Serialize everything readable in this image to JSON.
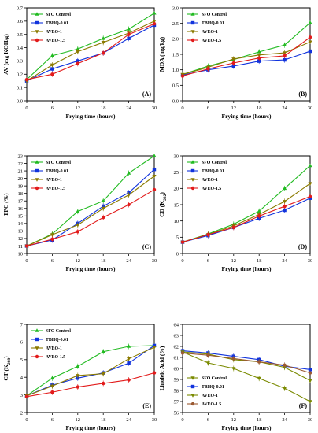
{
  "series_styles": [
    {
      "name": "SFO Control",
      "color": "#22bb22",
      "marker": "triangle-up"
    },
    {
      "name": "TBHQ-0.01",
      "color": "#1133dd",
      "marker": "square"
    },
    {
      "name": "AVEO-1",
      "color": "#8b7a00",
      "marker": "triangle-down"
    },
    {
      "name": "AVEO-1.5",
      "color": "#e21b1b",
      "marker": "circle"
    }
  ],
  "series_styles_f": [
    {
      "name": "SFO Control",
      "color": "#7a8a00",
      "marker": "triangle-down"
    },
    {
      "name": "TBHQ-0.01",
      "color": "#1133dd",
      "marker": "square"
    },
    {
      "name": "AVEO-1",
      "color": "#7a8a00",
      "marker": "triangle-down"
    },
    {
      "name": "AVEO-1.5",
      "color": "#9b5a32",
      "marker": "circle"
    }
  ],
  "chart_data": [
    {
      "type": "line",
      "panel": "(A)",
      "xlabel": "Frying time (hours)",
      "ylabel": "AV (mg KOH/g)",
      "x": [
        0,
        6,
        12,
        18,
        24,
        30
      ],
      "xlim": [
        0,
        30
      ],
      "ylim": [
        0.0,
        0.7
      ],
      "yticks": [
        "0.0",
        "0.1",
        "0.2",
        "0.3",
        "0.4",
        "0.5",
        "0.6",
        "0.7"
      ],
      "legend": "top-left",
      "series": [
        {
          "name": "SFO Control",
          "values": [
            0.16,
            0.34,
            0.39,
            0.47,
            0.54,
            0.66
          ]
        },
        {
          "name": "TBHQ-0.01",
          "values": [
            0.15,
            0.24,
            0.3,
            0.36,
            0.47,
            0.57
          ]
        },
        {
          "name": "AVEO-1",
          "values": [
            0.15,
            0.27,
            0.37,
            0.44,
            0.51,
            0.6
          ]
        },
        {
          "name": "AVEO-1.5",
          "values": [
            0.16,
            0.2,
            0.28,
            0.36,
            0.5,
            0.58
          ]
        }
      ]
    },
    {
      "type": "line",
      "panel": "(B)",
      "xlabel": "Frying time (hours)",
      "ylabel": "MDA (mg/kg)",
      "x": [
        0,
        6,
        12,
        18,
        24,
        30
      ],
      "xlim": [
        0,
        30
      ],
      "ylim": [
        0.0,
        3.0
      ],
      "yticks": [
        "0.0",
        "0.5",
        "1.0",
        "1.5",
        "2.0",
        "2.5",
        "3.0"
      ],
      "legend": "top-left",
      "series": [
        {
          "name": "SFO Control",
          "values": [
            0.85,
            1.12,
            1.33,
            1.58,
            1.8,
            2.52
          ]
        },
        {
          "name": "TBHQ-0.01",
          "values": [
            0.83,
            1.0,
            1.12,
            1.28,
            1.32,
            1.6
          ]
        },
        {
          "name": "AVEO-1",
          "values": [
            0.85,
            1.08,
            1.35,
            1.48,
            1.55,
            1.9
          ]
        },
        {
          "name": "AVEO-1.5",
          "values": [
            0.8,
            1.03,
            1.22,
            1.38,
            1.45,
            2.05
          ]
        }
      ]
    },
    {
      "type": "line",
      "panel": "(C)",
      "xlabel": "Frying time (hours)",
      "ylabel": "TPC (%)",
      "x": [
        0,
        6,
        12,
        18,
        24,
        30
      ],
      "xlim": [
        0,
        30
      ],
      "ylim": [
        10,
        23
      ],
      "yticks": [
        "10",
        "11",
        "12",
        "13",
        "14",
        "15",
        "16",
        "17",
        "18",
        "19",
        "20",
        "21",
        "22",
        "23"
      ],
      "legend": "top-left",
      "series": [
        {
          "name": "SFO Control",
          "values": [
            11.0,
            12.6,
            15.6,
            17.0,
            20.7,
            23.0
          ]
        },
        {
          "name": "TBHQ-0.01",
          "values": [
            11.0,
            11.8,
            14.0,
            16.3,
            18.1,
            21.2
          ]
        },
        {
          "name": "AVEO-1",
          "values": [
            11.0,
            12.5,
            13.8,
            16.0,
            17.8,
            20.3
          ]
        },
        {
          "name": "AVEO-1.5",
          "values": [
            11.0,
            11.9,
            12.9,
            14.8,
            16.5,
            18.5
          ]
        }
      ]
    },
    {
      "type": "line",
      "panel": "(D)",
      "xlabel": "Frying time (hours)",
      "ylabel": "CD (K232)",
      "x": [
        0,
        6,
        12,
        18,
        24,
        30
      ],
      "xlim": [
        0,
        30
      ],
      "ylim": [
        0,
        30
      ],
      "yticks": [
        "0",
        "5",
        "10",
        "15",
        "20",
        "25",
        "30"
      ],
      "legend": "top-left",
      "series": [
        {
          "name": "SFO Control",
          "values": [
            3.5,
            6.0,
            9.0,
            13.0,
            20.0,
            27.0
          ]
        },
        {
          "name": "TBHQ-0.01",
          "values": [
            3.5,
            5.5,
            8.0,
            10.8,
            13.3,
            17.0
          ]
        },
        {
          "name": "AVEO-1",
          "values": [
            3.5,
            5.8,
            8.5,
            12.0,
            16.0,
            21.5
          ]
        },
        {
          "name": "AVEO-1.5",
          "values": [
            3.5,
            5.8,
            8.0,
            11.5,
            14.5,
            17.5
          ]
        }
      ]
    },
    {
      "type": "line",
      "panel": "(E)",
      "xlabel": "Frying time (hours)",
      "ylabel": "CT (K268)",
      "x": [
        0,
        6,
        12,
        18,
        24,
        30
      ],
      "xlim": [
        0,
        30
      ],
      "ylim": [
        2,
        7
      ],
      "yticks": [
        "2",
        "3",
        "4",
        "5",
        "6",
        "7"
      ],
      "legend": "top-left",
      "series": [
        {
          "name": "SFO Control",
          "values": [
            2.95,
            3.95,
            4.62,
            5.45,
            5.75,
            5.8
          ]
        },
        {
          "name": "TBHQ-0.01",
          "values": [
            2.95,
            3.55,
            3.95,
            4.25,
            4.8,
            5.8
          ]
        },
        {
          "name": "AVEO-1",
          "values": [
            2.95,
            3.5,
            4.1,
            4.2,
            5.05,
            5.7
          ]
        },
        {
          "name": "AVEO-1.5",
          "values": [
            2.9,
            3.15,
            3.45,
            3.65,
            3.85,
            4.25
          ]
        }
      ]
    },
    {
      "type": "line",
      "panel": "(F)",
      "xlabel": "Frying time (hours)",
      "ylabel": "Linoleic Acid (%)",
      "x": [
        0,
        6,
        12,
        18,
        24,
        30
      ],
      "xlim": [
        0,
        30
      ],
      "ylim": [
        56,
        64
      ],
      "yticks": [
        "56",
        "57",
        "58",
        "59",
        "60",
        "61",
        "62",
        "63",
        "64"
      ],
      "legend": "bottom-left",
      "series": [
        {
          "name": "SFO Control",
          "values": [
            61.5,
            60.5,
            60.0,
            59.1,
            58.2,
            57.0
          ]
        },
        {
          "name": "TBHQ-0.01",
          "values": [
            61.6,
            61.4,
            61.1,
            60.8,
            60.2,
            59.9
          ]
        },
        {
          "name": "AVEO-1",
          "values": [
            61.5,
            61.3,
            60.8,
            60.6,
            60.1,
            58.9
          ]
        },
        {
          "name": "AVEO-1.5",
          "values": [
            61.4,
            61.2,
            60.9,
            60.6,
            60.3,
            59.6
          ]
        }
      ]
    }
  ]
}
